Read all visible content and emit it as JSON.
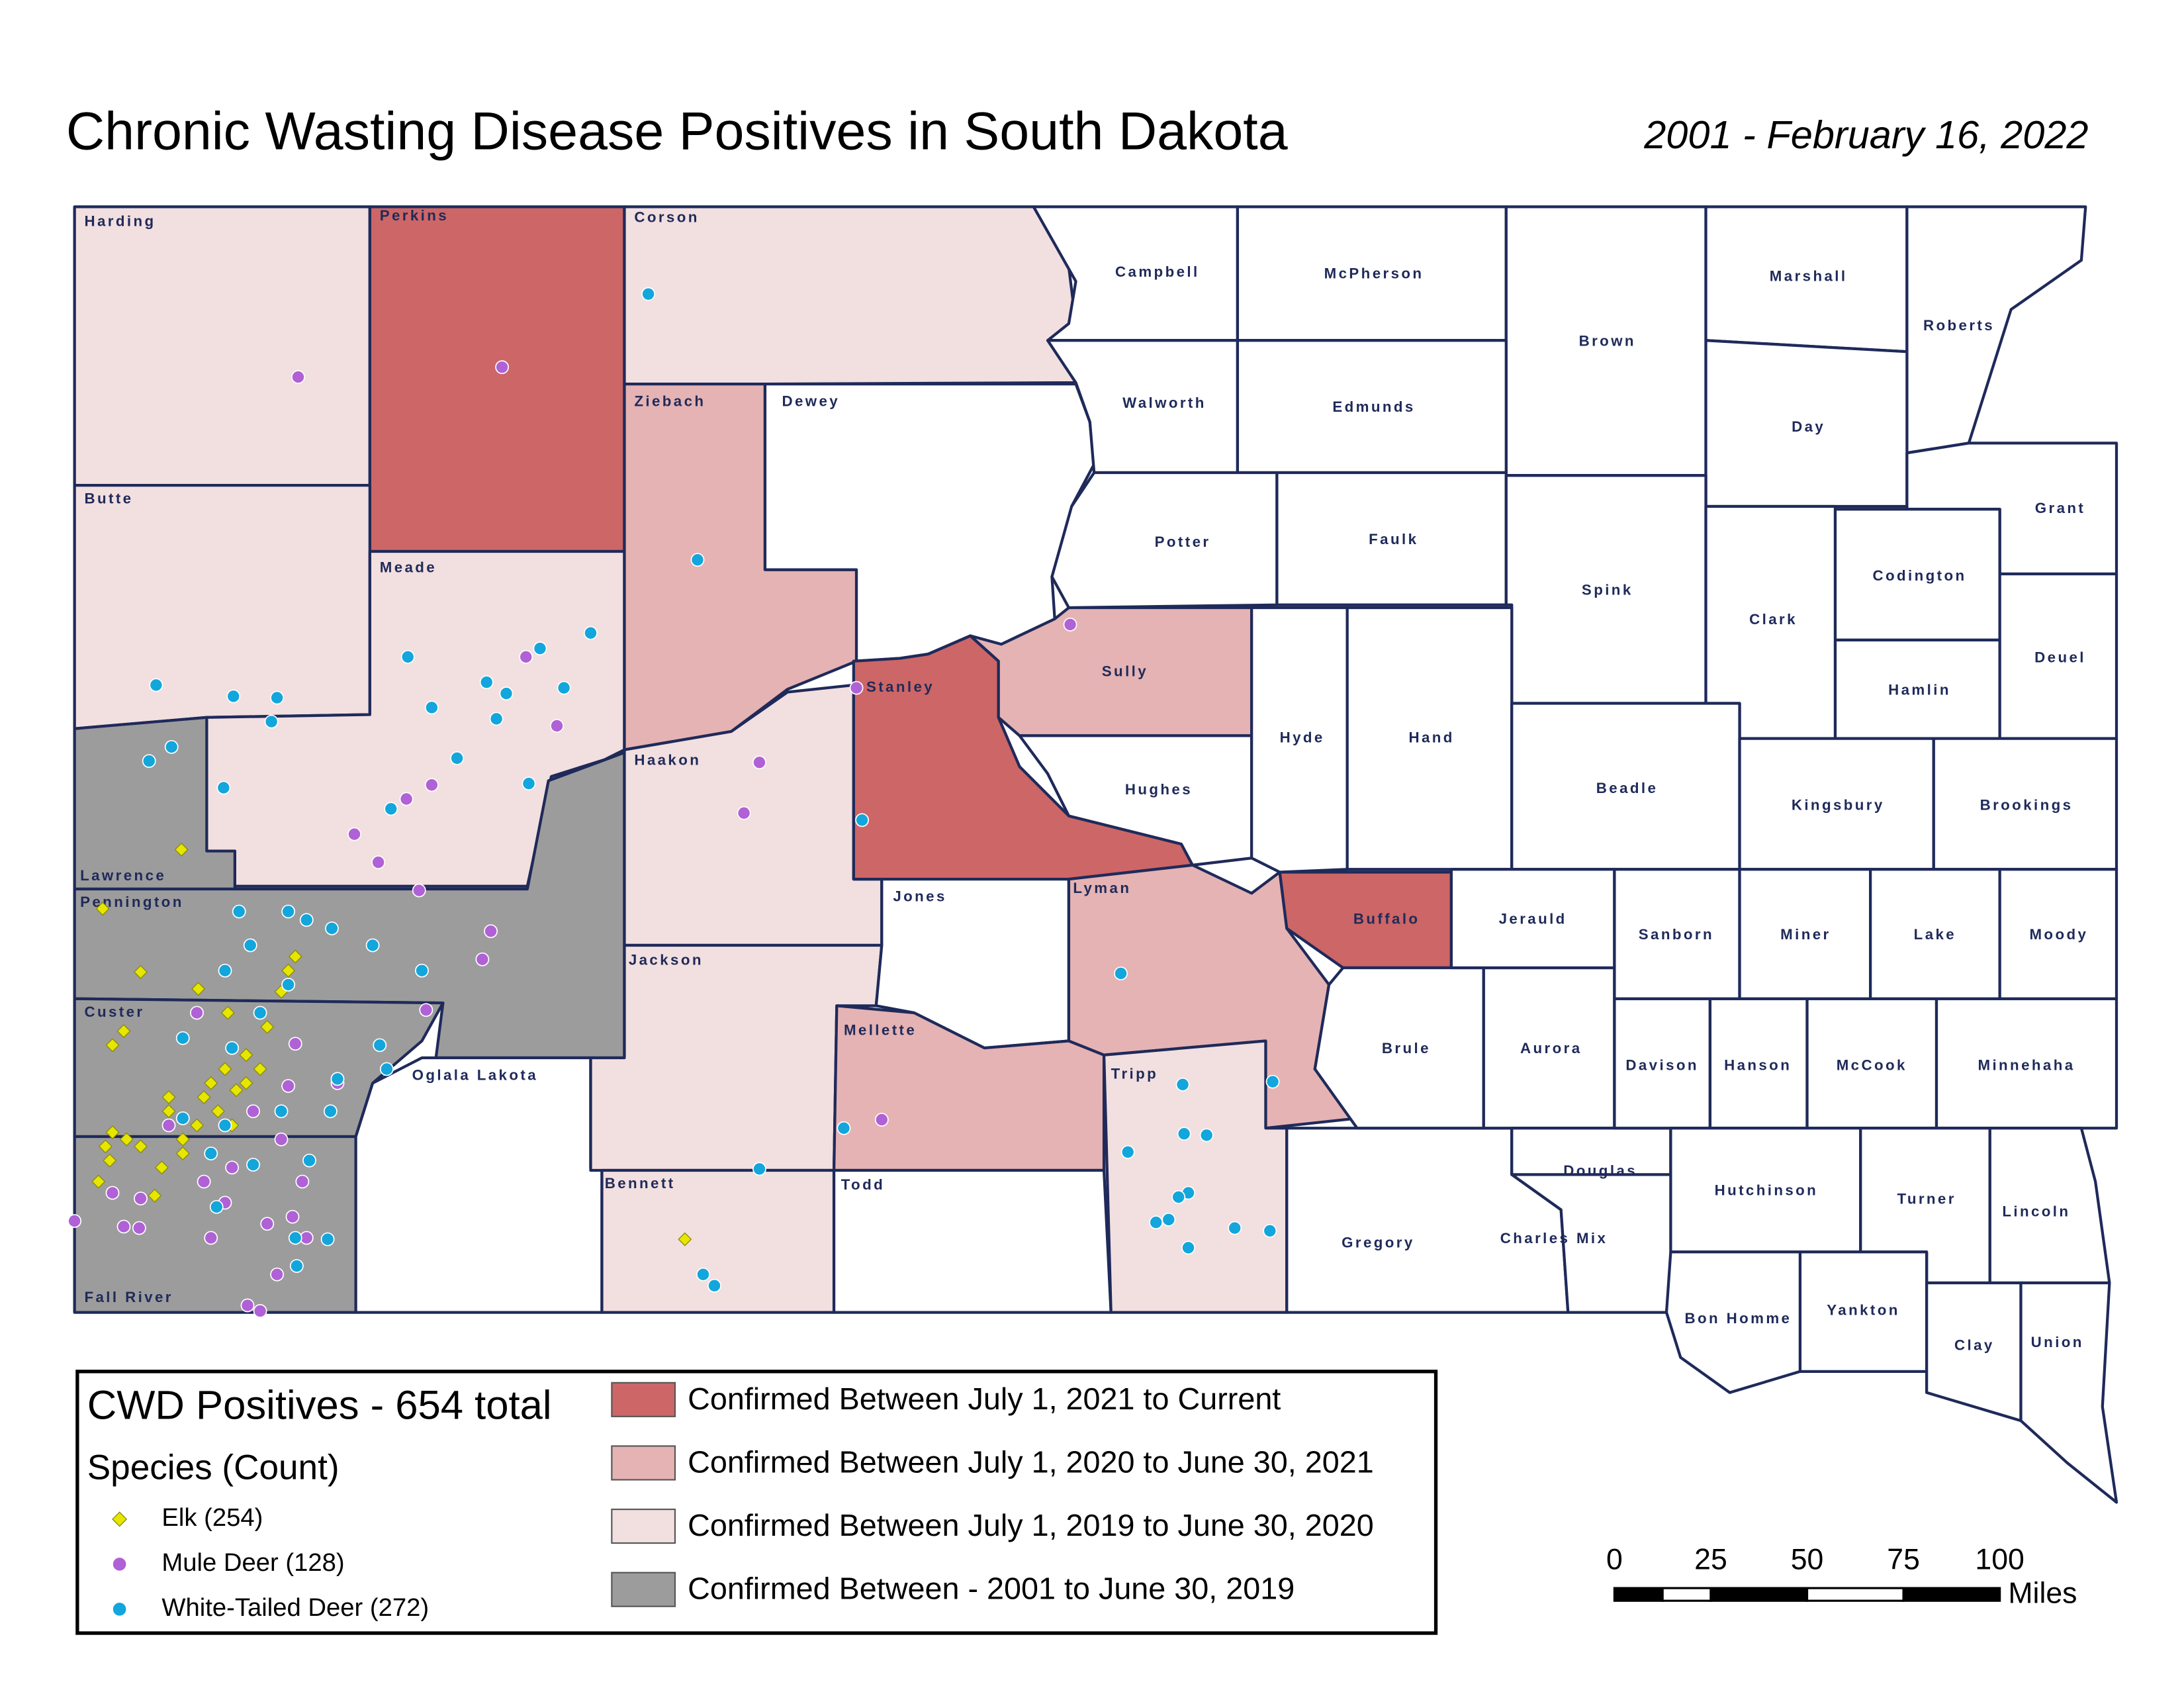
{
  "title": "Chronic Wasting Disease Positives in South Dakota",
  "date_range": "2001 -  February 16, 2022",
  "counties": [
    {
      "name": "Harding",
      "color": "#f2dfdf"
    },
    {
      "name": "Perkins",
      "color": "#cd6666"
    },
    {
      "name": "Corson",
      "color": "#f2dfdf"
    },
    {
      "name": "Butte",
      "color": "#f2dfdf"
    },
    {
      "name": "Meade",
      "color": "#f2dfdf"
    },
    {
      "name": "Ziebach",
      "color": "#e5b3b3"
    },
    {
      "name": "Dewey",
      "color": "#ffffff"
    },
    {
      "name": "Lawrence",
      "color": "#9c9c9c"
    },
    {
      "name": "Pennington",
      "color": "#9c9c9c"
    },
    {
      "name": "Custer",
      "color": "#9c9c9c"
    },
    {
      "name": "Fall River",
      "color": "#9c9c9c"
    },
    {
      "name": "Oglala Lakota",
      "color": "#ffffff"
    },
    {
      "name": "Haakon",
      "color": "#f2dfdf"
    },
    {
      "name": "Stanley",
      "color": "#cd6666"
    },
    {
      "name": "Jackson",
      "color": "#f2dfdf"
    },
    {
      "name": "Bennett",
      "color": "#f2dfdf"
    },
    {
      "name": "Jones",
      "color": "#ffffff"
    },
    {
      "name": "Mellette",
      "color": "#e5b3b3"
    },
    {
      "name": "Todd",
      "color": "#ffffff"
    },
    {
      "name": "Sully",
      "color": "#e5b3b3"
    },
    {
      "name": "Hughes",
      "color": "#ffffff"
    },
    {
      "name": "Lyman",
      "color": "#e5b3b3"
    },
    {
      "name": "Tripp",
      "color": "#f2dfdf"
    },
    {
      "name": "Buffalo",
      "color": "#cd6666"
    },
    {
      "name": "Gregory",
      "color": "#ffffff"
    },
    {
      "name": "Charles Mix",
      "color": "#ffffff"
    },
    {
      "name": "Brule",
      "color": "#ffffff"
    },
    {
      "name": "Aurora",
      "color": "#ffffff"
    },
    {
      "name": "Douglas",
      "color": "#ffffff"
    },
    {
      "name": "Davison",
      "color": "#ffffff"
    },
    {
      "name": "Hanson",
      "color": "#ffffff"
    },
    {
      "name": "McCook",
      "color": "#ffffff"
    },
    {
      "name": "Minnehaha",
      "color": "#ffffff"
    },
    {
      "name": "Hutchinson",
      "color": "#ffffff"
    },
    {
      "name": "Turner",
      "color": "#ffffff"
    },
    {
      "name": "Yankton",
      "color": "#ffffff"
    },
    {
      "name": "Lincoln",
      "color": "#ffffff"
    },
    {
      "name": "Bon Homme",
      "color": "#ffffff"
    },
    {
      "name": "Clay",
      "color": "#ffffff"
    },
    {
      "name": "Union",
      "color": "#ffffff"
    },
    {
      "name": "Campbell",
      "color": "#ffffff"
    },
    {
      "name": "McPherson",
      "color": "#ffffff"
    },
    {
      "name": "Brown",
      "color": "#ffffff"
    },
    {
      "name": "Marshall",
      "color": "#ffffff"
    },
    {
      "name": "Roberts",
      "color": "#ffffff"
    },
    {
      "name": "Walworth",
      "color": "#ffffff"
    },
    {
      "name": "Edmunds",
      "color": "#ffffff"
    },
    {
      "name": "Day",
      "color": "#ffffff"
    },
    {
      "name": "Grant",
      "color": "#ffffff"
    },
    {
      "name": "Potter",
      "color": "#ffffff"
    },
    {
      "name": "Faulk",
      "color": "#ffffff"
    },
    {
      "name": "Spink",
      "color": "#ffffff"
    },
    {
      "name": "Clark",
      "color": "#ffffff"
    },
    {
      "name": "Codington",
      "color": "#ffffff"
    },
    {
      "name": "Hamlin",
      "color": "#ffffff"
    },
    {
      "name": "Deuel",
      "color": "#ffffff"
    },
    {
      "name": "Hyde",
      "color": "#ffffff"
    },
    {
      "name": "Hand",
      "color": "#ffffff"
    },
    {
      "name": "Beadle",
      "color": "#ffffff"
    },
    {
      "name": "Kingsbury",
      "color": "#ffffff"
    },
    {
      "name": "Brookings",
      "color": "#ffffff"
    },
    {
      "name": "Jerauld",
      "color": "#ffffff"
    },
    {
      "name": "Sanborn",
      "color": "#ffffff"
    },
    {
      "name": "Miner",
      "color": "#ffffff"
    },
    {
      "name": "Lake",
      "color": "#ffffff"
    },
    {
      "name": "Moody",
      "color": "#ffffff"
    }
  ],
  "legend": {
    "title": "CWD Positives - 654 total",
    "species_title": "Species (Count)",
    "species": [
      {
        "label": "Elk (254)",
        "color": "#e6e600",
        "shape": "diamond"
      },
      {
        "label": "Mule Deer (128)",
        "color": "#b061d6",
        "shape": "circle"
      },
      {
        "label": "White-Tailed Deer (272)",
        "color": "#12a6dc",
        "shape": "circle"
      }
    ],
    "periods": [
      {
        "label": "Confirmed Between July 1, 2021 to Current",
        "color": "#cd6666"
      },
      {
        "label": "Confirmed Between July 1, 2020 to June 30, 2021",
        "color": "#e5b3b3"
      },
      {
        "label": "Confirmed Between July 1, 2019 to June 30, 2020",
        "color": "#f2dfdf"
      },
      {
        "label": "Confirmed Between - 2001 to June 30, 2019",
        "color": "#9c9c9c"
      }
    ]
  },
  "scale_bar": {
    "ticks": [
      0,
      25,
      50,
      75,
      100
    ],
    "unit": "Miles"
  }
}
